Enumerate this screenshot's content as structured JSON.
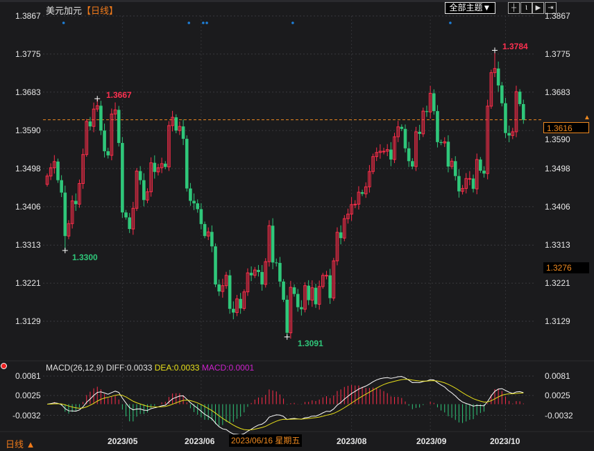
{
  "header": {
    "symbol": "美元加元",
    "timeframe_tag": "【日线】",
    "theme_button": "全部主题▼",
    "tool_icons": [
      "crosshair-icon",
      "range-icon",
      "play-forward-icon",
      "jump-end-icon"
    ]
  },
  "colors": {
    "up": "#ff2d4a",
    "down": "#2fc77a",
    "background": "#1b1b1d",
    "current_price": "#f08a20",
    "diff": "#ffffff",
    "dea": "#e8e01a",
    "macd": "#cc22cc",
    "marker": "#1e7fd8"
  },
  "price_axis": {
    "ticks": [
      "1.3867",
      "1.3775",
      "1.3683",
      "1.3590",
      "1.3498",
      "1.3406",
      "1.3313",
      "1.3221",
      "1.3129"
    ],
    "current_price": "1.3616",
    "reference_price": "1.3276"
  },
  "annotations": {
    "high1": "1.3667",
    "low1": "1.3300",
    "low2": "1.3091",
    "high2": "1.3784"
  },
  "macd": {
    "legend": "MACD(26,12,9)",
    "diff": "DIFF:0.0033",
    "dea": "DEA:0.0033",
    "macd": "MACD:0.0001",
    "ticks": [
      "0.0081",
      "0.0025",
      "-0.0032"
    ]
  },
  "x_axis": {
    "period": "日线 ▲",
    "months": [
      "2023/05",
      "2023/06",
      "2023/08",
      "2023/09",
      "2023/10"
    ],
    "cursor_label": "2023/06/16 星期五"
  },
  "chart_data": {
    "type": "candlestick",
    "title": "美元加元",
    "ylim": [
      1.3091,
      1.3867
    ],
    "grid": true,
    "month_ticks": [
      {
        "label": "2023/05",
        "index": 21
      },
      {
        "label": "2023/06",
        "index": 43
      },
      {
        "label": "2023/08",
        "index": 85
      },
      {
        "label": "2023/09",
        "index": 107
      },
      {
        "label": "2023/10",
        "index": 128
      }
    ],
    "extremes": [
      {
        "index": 14,
        "type": "high",
        "value": 1.3667
      },
      {
        "index": 5,
        "type": "low",
        "value": 1.33
      },
      {
        "index": 67,
        "type": "low",
        "value": 1.3091
      },
      {
        "index": 125,
        "type": "high",
        "value": 1.3784
      }
    ],
    "marker_indices": [
      4,
      39,
      43,
      44,
      68,
      112
    ],
    "first_open": 1.346,
    "close": [
      1.348,
      1.35,
      1.3515,
      1.347,
      1.344,
      1.3335,
      1.3365,
      1.342,
      1.3412,
      1.3462,
      1.3532,
      1.3612,
      1.36,
      1.3642,
      1.365,
      1.359,
      1.354,
      1.353,
      1.363,
      1.364,
      1.356,
      1.3392,
      1.338,
      1.3352,
      1.3402,
      1.3492,
      1.347,
      1.3422,
      1.3442,
      1.3512,
      1.349,
      1.35,
      1.351,
      1.3502,
      1.3602,
      1.3622,
      1.359,
      1.36,
      1.357,
      1.345,
      1.342,
      1.3414,
      1.34,
      1.3364,
      1.3335,
      1.3345,
      1.331,
      1.3218,
      1.3201,
      1.3215,
      1.324,
      1.3159,
      1.315,
      1.3183,
      1.316,
      1.32,
      1.3246,
      1.324,
      1.3253,
      1.3248,
      1.3218,
      1.3273,
      1.336,
      1.3271,
      1.327,
      1.3225,
      1.3181,
      1.3101,
      1.3211,
      1.3195,
      1.3163,
      1.3158,
      1.3215,
      1.318,
      1.321,
      1.317,
      1.3213,
      1.324,
      1.324,
      1.3185,
      1.3275,
      1.3344,
      1.333,
      1.3377,
      1.3388,
      1.3411,
      1.3412,
      1.3441,
      1.3437,
      1.3454,
      1.3491,
      1.3527,
      1.3537,
      1.354,
      1.354,
      1.3544,
      1.352,
      1.3575,
      1.3599,
      1.3594,
      1.3547,
      1.3516,
      1.3503,
      1.3587,
      1.3582,
      1.3637,
      1.3635,
      1.368,
      1.3637,
      1.3562,
      1.356,
      1.3563,
      1.3503,
      1.3516,
      1.348,
      1.3443,
      1.345,
      1.3474,
      1.3474,
      1.3449,
      1.352,
      1.3493,
      1.3486,
      1.3649,
      1.373,
      1.374,
      1.3699,
      1.3656,
      1.3584,
      1.3578,
      1.3587,
      1.3684,
      1.3654,
      1.3616
    ]
  }
}
